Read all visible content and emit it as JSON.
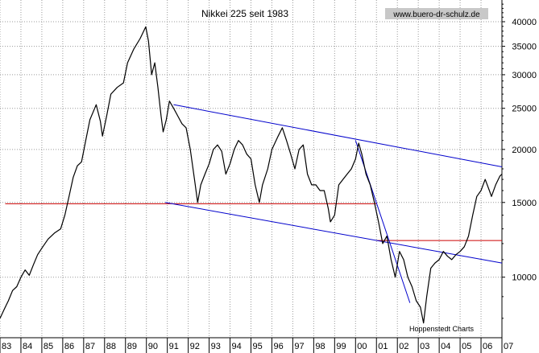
{
  "chart_data": {
    "type": "line",
    "title": "Nikkei 225 seit 1983",
    "watermark": "www.buero-dr-schulz.de",
    "credit": "Hoppenstedt Charts",
    "xlabel": "",
    "ylabel": "",
    "y_scale": "log",
    "xlim": [
      1983.0,
      2007.0
    ],
    "ylim": [
      7200,
      45000
    ],
    "grid": true,
    "x_tick_labels": [
      "83",
      "84",
      "85",
      "86",
      "87",
      "88",
      "89",
      "90",
      "91",
      "92",
      "93",
      "94",
      "95",
      "96",
      "97",
      "98",
      "99",
      "00",
      "01",
      "02",
      "03",
      "04",
      "05",
      "06",
      "07"
    ],
    "y_ticks": [
      10000,
      15000,
      20000,
      25000,
      30000,
      35000,
      40000
    ],
    "y_tick_labels": [
      "10000",
      "15000",
      "20000",
      "25000",
      "30000",
      "35000",
      "40000"
    ],
    "colors": {
      "series": "#000000",
      "trend_channel": "#0000cc",
      "support_lines": "#cc0000",
      "grid": "#9a9a9a"
    },
    "series": [
      {
        "x": [
          1983.0,
          1983.2,
          1983.4,
          1983.6,
          1983.8,
          1984.0,
          1984.2,
          1984.4,
          1984.6,
          1984.8,
          1985.0,
          1985.3,
          1985.6,
          1985.9,
          1986.1,
          1986.3,
          1986.5,
          1986.7,
          1986.9,
          1987.1,
          1987.3,
          1987.6,
          1987.8,
          1987.9,
          1988.1,
          1988.3,
          1988.6,
          1988.9,
          1989.1,
          1989.4,
          1989.7,
          1989.97,
          1990.1,
          1990.25,
          1990.4,
          1990.55,
          1990.7,
          1990.8,
          1990.95,
          1991.1,
          1991.3,
          1991.5,
          1991.7,
          1991.9,
          1992.1,
          1992.3,
          1992.45,
          1992.6,
          1992.8,
          1993.0,
          1993.2,
          1993.4,
          1993.6,
          1993.8,
          1994.0,
          1994.2,
          1994.4,
          1994.6,
          1994.8,
          1995.0,
          1995.2,
          1995.4,
          1995.55,
          1995.8,
          1996.0,
          1996.3,
          1996.5,
          1996.7,
          1996.9,
          1997.1,
          1997.3,
          1997.5,
          1997.7,
          1997.9,
          1998.1,
          1998.3,
          1998.5,
          1998.7,
          1998.8,
          1999.0,
          1999.2,
          1999.4,
          1999.6,
          1999.8,
          2000.0,
          2000.15,
          2000.3,
          2000.5,
          2000.7,
          2000.9,
          2001.1,
          2001.3,
          2001.5,
          2001.7,
          2001.9,
          2002.1,
          2002.3,
          2002.5,
          2002.7,
          2002.9,
          2003.1,
          2003.25,
          2003.4,
          2003.6,
          2003.8,
          2004.0,
          2004.2,
          2004.4,
          2004.6,
          2004.8,
          2005.0,
          2005.2,
          2005.4,
          2005.6,
          2005.8,
          2006.0,
          2006.2,
          2006.4,
          2006.5,
          2006.7,
          2006.9,
          2007.0
        ],
        "y": [
          8000,
          8400,
          8800,
          9300,
          9500,
          10000,
          10400,
          10100,
          10700,
          11300,
          11700,
          12300,
          12700,
          13000,
          14000,
          15500,
          17200,
          18300,
          18700,
          21000,
          23500,
          25500,
          23300,
          21500,
          24000,
          27000,
          28000,
          28700,
          32000,
          34500,
          36500,
          38900,
          36000,
          30000,
          32000,
          28000,
          24000,
          22000,
          23500,
          26000,
          25000,
          24000,
          23000,
          22500,
          20000,
          17000,
          15000,
          16500,
          17500,
          18500,
          20000,
          20500,
          19800,
          17500,
          18500,
          20000,
          21000,
          20500,
          19500,
          19000,
          16500,
          15000,
          16500,
          18000,
          20000,
          21500,
          22500,
          21000,
          19500,
          18000,
          20000,
          20500,
          17500,
          16500,
          16500,
          16000,
          16000,
          14500,
          13500,
          14000,
          16500,
          17000,
          17500,
          18000,
          19000,
          20700,
          19500,
          17500,
          16500,
          15000,
          13500,
          12000,
          12500,
          11000,
          10000,
          11500,
          11000,
          10000,
          9500,
          8800,
          8500,
          7800,
          9000,
          10500,
          10800,
          11000,
          11500,
          11200,
          11000,
          11300,
          11500,
          11800,
          12500,
          14000,
          15500,
          16000,
          17000,
          16000,
          15500,
          16500,
          17300,
          17500
        ]
      }
    ],
    "trend_lines": [
      {
        "x": [
          1983.25,
          2001.0
        ],
        "y": [
          14900,
          14900
        ],
        "color": "red"
      },
      {
        "x": [
          2001.0,
          2007.0
        ],
        "y": [
          12200,
          12200
        ],
        "color": "red"
      },
      {
        "x": [
          1991.3,
          2007.0
        ],
        "y": [
          25500,
          18200
        ],
        "color": "blue"
      },
      {
        "x": [
          1990.9,
          2007.0
        ],
        "y": [
          15000,
          10800
        ],
        "color": "blue"
      },
      {
        "x": [
          2000.0,
          2002.6
        ],
        "y": [
          21000,
          8700
        ],
        "color": "blue"
      }
    ]
  }
}
